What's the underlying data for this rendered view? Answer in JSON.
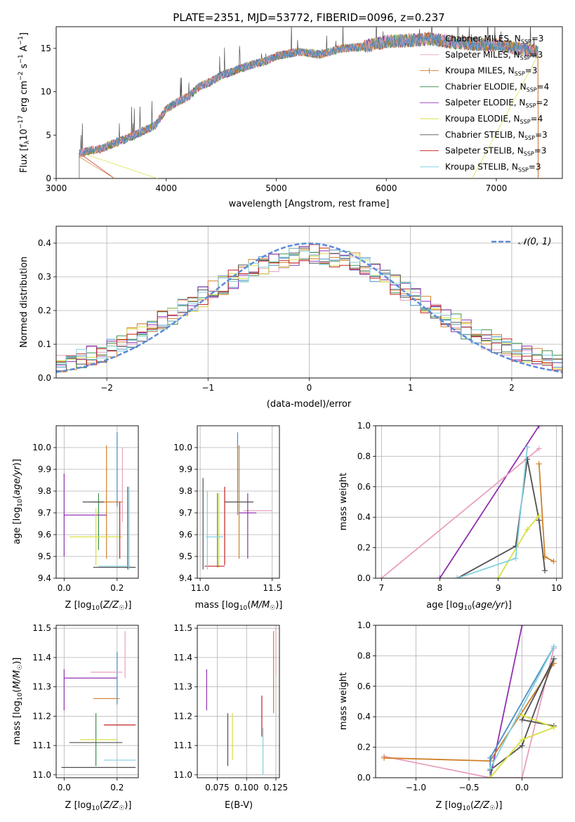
{
  "title": "PLATE=2351, MJD=53772, FIBERID=0096, z=0.237",
  "colors": {
    "chabrier_miles": "#4a8fc4",
    "salpeter_miles": "#e8a0c0",
    "kroupa_miles": "#d0802a",
    "chabrier_elodie": "#3e9050",
    "salpeter_elodie": "#9030b0",
    "kroupa_elodie": "#d8e040",
    "chabrier_stelib": "#505050",
    "salpeter_stelib": "#c02020",
    "kroupa_stelib": "#80d0e0",
    "gaussian": "#5b8bd8"
  },
  "chart_data": [
    {
      "id": "spectrum",
      "type": "line",
      "title": "PLATE=2351, MJD=53772, FIBERID=0096, z=0.237",
      "xlabel": "wavelength [Angstrom, rest frame]",
      "ylabel": "Flux [f_λ10^-17 erg cm^-2 s^-1 A^-1]",
      "xlim": [
        3000,
        7600
      ],
      "ylim": [
        0,
        17.5
      ],
      "xticks": [
        3000,
        4000,
        5000,
        6000,
        7000
      ],
      "yticks": [
        0,
        5,
        10,
        15
      ],
      "grid": false,
      "legend_position": "top-right",
      "x": [
        3210,
        3300,
        3400,
        3500,
        3600,
        3700,
        3800,
        3900,
        4000,
        4100,
        4200,
        4300,
        4400,
        4500,
        4600,
        4700,
        4800,
        4900,
        5000,
        5200,
        5400,
        5600,
        5800,
        6000,
        6200,
        6400,
        6600,
        6800,
        7000,
        7200,
        7380
      ],
      "flux": [
        2.9,
        3.2,
        3.4,
        3.9,
        4.4,
        4.9,
        5.5,
        6.1,
        8.0,
        8.8,
        9.4,
        10.6,
        11.1,
        11.9,
        12.3,
        12.8,
        13.2,
        13.5,
        14.1,
        14.6,
        14.3,
        15.0,
        15.2,
        15.8,
        15.9,
        16.1,
        15.7,
        15.5,
        15.4,
        15.0,
        14.6
      ],
      "series": [
        {
          "name": "Chabrier MILES, N_SSP=3",
          "label": "Chabrier MILES, N",
          "sub": "SSP",
          "eq": "=3",
          "color_key": "chabrier_miles",
          "style": "line"
        },
        {
          "name": "Salpeter MILES, N_SSP=3",
          "label": "Salpeter MILES, N",
          "sub": "SSP",
          "eq": "=3",
          "color_key": "salpeter_miles",
          "style": "line"
        },
        {
          "name": "Kroupa MILES, N_SSP=3",
          "label": "Kroupa MILES, N",
          "sub": "SSP",
          "eq": "=3",
          "color_key": "kroupa_miles",
          "style": "plus"
        },
        {
          "name": "Chabrier ELODIE, N_SSP=4",
          "label": "Chabrier ELODIE, N",
          "sub": "SSP",
          "eq": "=4",
          "color_key": "chabrier_elodie",
          "style": "line"
        },
        {
          "name": "Salpeter ELODIE, N_SSP=2",
          "label": "Salpeter ELODIE, N",
          "sub": "SSP",
          "eq": "=2",
          "color_key": "salpeter_elodie",
          "style": "line"
        },
        {
          "name": "Kroupa ELODIE, N_SSP=4",
          "label": "Kroupa ELODIE, N",
          "sub": "SSP",
          "eq": "=4",
          "color_key": "kroupa_elodie",
          "style": "line"
        },
        {
          "name": "Chabrier STELIB, N_SSP=3",
          "label": "Chabrier STELIB, N",
          "sub": "SSP",
          "eq": "=3",
          "color_key": "chabrier_stelib",
          "style": "line"
        },
        {
          "name": "Salpeter STELIB, N_SSP=3",
          "label": "Salpeter STELIB, N",
          "sub": "SSP",
          "eq": "=3",
          "color_key": "salpeter_stelib",
          "style": "line"
        },
        {
          "name": "Kroupa STELIB, N_SSP=3",
          "label": "Kroupa STELIB, N",
          "sub": "SSP",
          "eq": "=3",
          "color_key": "kroupa_stelib",
          "style": "line"
        }
      ]
    },
    {
      "id": "residuals",
      "type": "line",
      "xlabel": "(data-model)/error",
      "ylabel": "Normed distribution",
      "xlim": [
        -2.5,
        2.5
      ],
      "ylim": [
        0,
        0.45
      ],
      "xticks": [
        -2,
        -1,
        0,
        1,
        2
      ],
      "yticks": [
        0.0,
        0.1,
        0.2,
        0.3,
        0.4
      ],
      "grid": true,
      "legend_position": "top-right",
      "legend": [
        "𝒩(0, 1)"
      ],
      "bin_width": 0.1,
      "histogram_envelope": {
        "x": [
          -2.5,
          -2.0,
          -1.5,
          -1.0,
          -0.5,
          0.0,
          0.5,
          1.0,
          1.5,
          2.0,
          2.5
        ],
        "y": [
          0.04,
          0.08,
          0.16,
          0.25,
          0.33,
          0.37,
          0.34,
          0.25,
          0.15,
          0.08,
          0.05
        ]
      }
    },
    {
      "id": "age_vs_Z",
      "type": "scatter",
      "xlabel": "Z [log10(Z/Z☉)]",
      "ylabel": "age  [log10(age/yr)]",
      "xlim": [
        -0.03,
        0.28
      ],
      "ylim": [
        9.4,
        10.1
      ],
      "xticks": [
        "0.0",
        "0.2"
      ],
      "yticks": [
        "9.4",
        "9.5",
        "9.6",
        "9.7",
        "9.8",
        "9.9",
        "10.0"
      ],
      "grid": true,
      "points": [
        {
          "series": "Chabrier MILES",
          "x": 0.2,
          "xerr": 0.0,
          "y": 9.9,
          "yerr": 0.17
        },
        {
          "series": "Salpeter MILES",
          "x": 0.22,
          "xerr": 0.0,
          "y": 9.83,
          "yerr": 0.17
        },
        {
          "series": "Kroupa MILES",
          "x": 0.16,
          "xerr": 0.06,
          "y": 9.75,
          "yerr": 0.26
        },
        {
          "series": "Chabrier ELODIE",
          "x": 0.13,
          "xerr": 0.0,
          "y": 9.66,
          "yerr": 0.13
        },
        {
          "series": "Salpeter ELODIE",
          "x": 0.0,
          "xerr": 0.0,
          "y": 9.69,
          "yerr": 0.19
        },
        {
          "series": "Salpeter ELODIE",
          "x": 0.08,
          "xerr": 0.08,
          "y": 9.69,
          "yerr": 0.0
        },
        {
          "series": "Kroupa ELODIE",
          "x": 0.12,
          "xerr": 0.1,
          "y": 9.59,
          "yerr": 0.13
        },
        {
          "series": "Chabrier STELIB",
          "x": 0.11,
          "xerr": 0.04,
          "y": 9.75,
          "yerr": 0.0
        },
        {
          "series": "Chabrier STELIB",
          "x": 0.19,
          "xerr": 0.08,
          "y": 9.45,
          "yerr": 0.0
        },
        {
          "series": "Chabrier STELIB",
          "x": 0.24,
          "xerr": 0.0,
          "y": 9.63,
          "yerr": 0.19
        },
        {
          "series": "Salpeter STELIB",
          "x": 0.21,
          "xerr": 0.0,
          "y": 9.62,
          "yerr": 0.13
        },
        {
          "series": "Kroupa STELIB",
          "x": 0.19,
          "xerr": 0.06,
          "y": 9.455,
          "yerr": 0.0
        },
        {
          "series": "Kroupa STELIB",
          "x": 0.245,
          "xerr": 0.0,
          "y": 9.63,
          "yerr": 0.19
        }
      ]
    },
    {
      "id": "age_vs_mass",
      "type": "scatter",
      "xlabel": "mass [log10(M/M☉)]",
      "ylabel": "",
      "xlim": [
        10.98,
        11.55
      ],
      "ylim": [
        9.4,
        10.1
      ],
      "xticks": [
        "11.0",
        "11.5"
      ],
      "yticks": [
        "9.4",
        "9.5",
        "9.6",
        "9.7",
        "9.8",
        "9.9",
        "10.0"
      ],
      "grid": true,
      "points": [
        {
          "series": "Chabrier MILES",
          "x": 11.26,
          "xerr": 0.0,
          "y": 9.88,
          "yerr": 0.19
        },
        {
          "series": "Salpeter MILES",
          "x": 11.4,
          "xerr": 0.1,
          "y": 9.71,
          "yerr": 0.0
        },
        {
          "series": "Kroupa MILES",
          "x": 11.27,
          "xerr": 0.0,
          "y": 9.75,
          "yerr": 0.26
        },
        {
          "series": "Chabrier ELODIE",
          "x": 11.12,
          "xerr": 0.0,
          "y": 9.62,
          "yerr": 0.17
        },
        {
          "series": "Salpeter ELODIE",
          "x": 11.33,
          "xerr": 0.06,
          "y": 9.7,
          "yerr": 0.0
        },
        {
          "series": "Salpeter ELODIE",
          "x": 11.33,
          "xerr": 0.0,
          "y": 9.64,
          "yerr": 0.15
        },
        {
          "series": "Kroupa ELODIE",
          "x": 11.13,
          "xerr": 0.0,
          "y": 9.62,
          "yerr": 0.17
        },
        {
          "series": "Chabrier STELIB",
          "x": 11.02,
          "xerr": 0.0,
          "y": 9.65,
          "yerr": 0.21
        },
        {
          "series": "Chabrier STELIB",
          "x": 11.27,
          "xerr": 0.1,
          "y": 9.75,
          "yerr": 0.0
        },
        {
          "series": "Salpeter STELIB",
          "x": 11.17,
          "xerr": 0.0,
          "y": 9.64,
          "yerr": 0.18
        },
        {
          "series": "Salpeter STELIB",
          "x": 11.1,
          "xerr": 0.07,
          "y": 9.455,
          "yerr": 0.0
        },
        {
          "series": "Kroupa STELIB",
          "x": 11.05,
          "xerr": 0.0,
          "y": 9.62,
          "yerr": 0.18
        },
        {
          "series": "Kroupa STELIB",
          "x": 11.1,
          "xerr": 0.06,
          "y": 9.59,
          "yerr": 0.0
        }
      ]
    },
    {
      "id": "weight_vs_age",
      "type": "line",
      "xlabel": "age  [log10(age/yr)]",
      "ylabel": "mass weight",
      "xlim": [
        6.9,
        10.1
      ],
      "ylim": [
        0,
        1
      ],
      "xticks": [
        "7",
        "8",
        "9",
        "10"
      ],
      "yticks": [
        "0.0",
        "0.2",
        "0.4",
        "0.6",
        "0.8",
        "1.0"
      ],
      "grid": true,
      "series": [
        {
          "series": "Salpeter ELODIE",
          "x": [
            8.0,
            9.7
          ],
          "y": [
            0.0,
            1.0
          ]
        },
        {
          "series": "Salpeter MILES",
          "x": [
            7.0,
            9.7
          ],
          "y": [
            0.0,
            0.85
          ]
        },
        {
          "series": "Kroupa MILES",
          "x": [
            9.7,
            9.8,
            9.95
          ],
          "y": [
            0.75,
            0.14,
            0.11
          ]
        },
        {
          "series": "Chabrier STELIB",
          "x": [
            8.3,
            9.3,
            9.5,
            9.7,
            9.8
          ],
          "y": [
            0.0,
            0.21,
            0.78,
            0.38,
            0.05
          ]
        },
        {
          "series": "Kroupa ELODIE",
          "x": [
            9.0,
            9.5,
            9.7
          ],
          "y": [
            0.0,
            0.32,
            0.41
          ]
        },
        {
          "series": "Kroupa STELIB",
          "x": [
            8.3,
            9.3,
            9.5
          ],
          "y": [
            0.0,
            0.13,
            0.86
          ]
        }
      ]
    },
    {
      "id": "mass_vs_Z",
      "type": "scatter",
      "xlabel": "Z [log10(Z/Z☉)]",
      "ylabel": "mass [log10(M/M☉)]",
      "xlim": [
        -0.03,
        0.28
      ],
      "ylim": [
        10.99,
        11.51
      ],
      "xticks": [
        "0.0",
        "0.2"
      ],
      "yticks": [
        "11.0",
        "11.1",
        "11.2",
        "11.3",
        "11.4",
        "11.5"
      ],
      "grid": true,
      "points": [
        {
          "series": "Chabrier MILES",
          "x": 0.2,
          "xerr": 0.0,
          "y": 11.33,
          "yerr": 0.09
        },
        {
          "series": "Salpeter MILES",
          "x": 0.23,
          "xerr": 0.0,
          "y": 11.41,
          "yerr": 0.08
        },
        {
          "series": "Salpeter MILES",
          "x": 0.16,
          "xerr": 0.06,
          "y": 11.35,
          "yerr": 0.0
        },
        {
          "series": "Kroupa MILES",
          "x": 0.16,
          "xerr": 0.05,
          "y": 11.26,
          "yerr": 0.0
        },
        {
          "series": "Salpeter ELODIE",
          "x": 0.0,
          "xerr": 0.0,
          "y": 11.29,
          "yerr": 0.07
        },
        {
          "series": "Salpeter ELODIE",
          "x": 0.1,
          "xerr": 0.1,
          "y": 11.33,
          "yerr": 0.0
        },
        {
          "series": "Chabrier ELODIE",
          "x": 0.12,
          "xerr": 0.0,
          "y": 11.12,
          "yerr": 0.09
        },
        {
          "series": "Kroupa ELODIE",
          "x": 0.13,
          "xerr": 0.07,
          "y": 11.12,
          "yerr": 0.0
        },
        {
          "series": "Chabrier STELIB",
          "x": 0.13,
          "xerr": 0.14,
          "y": 11.025,
          "yerr": 0.0
        },
        {
          "series": "Chabrier STELIB",
          "x": 0.12,
          "xerr": 0.1,
          "y": 11.11,
          "yerr": 0.0
        },
        {
          "series": "Salpeter STELIB",
          "x": 0.21,
          "xerr": 0.06,
          "y": 11.17,
          "yerr": 0.0
        },
        {
          "series": "Kroupa STELIB",
          "x": 0.21,
          "xerr": 0.06,
          "y": 11.05,
          "yerr": 0.0
        }
      ]
    },
    {
      "id": "mass_vs_ebv",
      "type": "scatter",
      "xlabel": "E(B-V)",
      "ylabel": "",
      "xlim": [
        0.058,
        0.128
      ],
      "ylim": [
        10.99,
        11.51
      ],
      "xticks": [
        "0.075",
        "0.100",
        "0.125"
      ],
      "yticks": [
        "11.0",
        "11.1",
        "11.2",
        "11.3",
        "11.4",
        "11.5"
      ],
      "grid": true,
      "points": [
        {
          "series": "Salpeter ELODIE",
          "x": 0.066,
          "xerr": 0.0,
          "y": 11.29,
          "yerr": 0.07
        },
        {
          "series": "Chabrier STELIB",
          "x": 0.084,
          "xerr": 0.0,
          "y": 11.12,
          "yerr": 0.09
        },
        {
          "series": "Kroupa ELODIE",
          "x": 0.088,
          "xerr": 0.0,
          "y": 11.13,
          "yerr": 0.08
        },
        {
          "series": "Salpeter STELIB",
          "x": 0.113,
          "xerr": 0.0,
          "y": 11.2,
          "yerr": 0.07
        },
        {
          "series": "Kroupa STELIB",
          "x": 0.114,
          "xerr": 0.0,
          "y": 11.08,
          "yerr": 0.08
        },
        {
          "series": "Kroupa MILES",
          "x": 0.123,
          "xerr": 0.0,
          "y": 11.35,
          "yerr": 0.14
        },
        {
          "series": "Salpeter MILES",
          "x": 0.125,
          "xerr": 0.0,
          "y": 11.42,
          "yerr": 0.08
        }
      ]
    },
    {
      "id": "weight_vs_Z",
      "type": "line",
      "xlabel": "Z [log10(Z/Z☉)]",
      "ylabel": "mass weight",
      "xlim": [
        -1.38,
        0.38
      ],
      "ylim": [
        0,
        1
      ],
      "xticks": [
        "−1.0",
        "−0.5",
        "0.0"
      ],
      "yticks": [
        "0.0",
        "0.2",
        "0.4",
        "0.6",
        "0.8",
        "1.0"
      ],
      "grid": true,
      "series": [
        {
          "series": "Salpeter ELODIE",
          "x": [
            -0.3,
            0.0
          ],
          "y": [
            0.0,
            1.0
          ]
        },
        {
          "series": "Salpeter MILES",
          "x": [
            -1.3,
            -0.3,
            0.0,
            0.3
          ],
          "y": [
            0.14,
            0.0,
            0.0,
            0.85
          ]
        },
        {
          "series": "Kroupa MILES",
          "x": [
            -1.3,
            -0.3,
            0.3
          ],
          "y": [
            0.13,
            0.11,
            0.75
          ]
        },
        {
          "series": "Chabrier MILES",
          "x": [
            -0.3,
            -0.3,
            0.3
          ],
          "y": [
            0.0,
            0.13,
            0.86
          ]
        },
        {
          "series": "Chabrier STELIB",
          "x": [
            -0.3,
            0.0,
            0.3,
            0.0,
            0.3
          ],
          "y": [
            0.05,
            0.21,
            0.78,
            0.38,
            0.34
          ]
        },
        {
          "series": "Kroupa ELODIE",
          "x": [
            -0.3,
            0.0,
            0.3,
            0.0
          ],
          "y": [
            0.0,
            0.25,
            0.33,
            0.41
          ]
        },
        {
          "series": "Kroupa STELIB",
          "x": [
            -0.3,
            0.3
          ],
          "y": [
            0.06,
            0.86
          ]
        }
      ]
    }
  ]
}
